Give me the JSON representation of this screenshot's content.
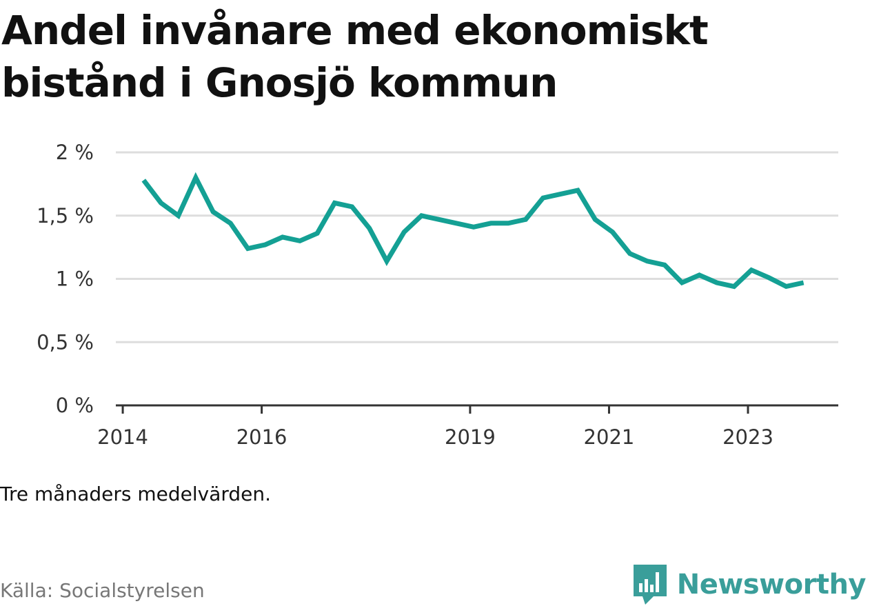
{
  "title": "Andel invånare med ekonomiskt bistånd i Gnosjö kommun",
  "note": "Tre månaders medelvärden.",
  "source": "Källa: Socialstyrelsen",
  "brand": {
    "name": "Newsworthy",
    "icon": "newsworthy-logo-icon",
    "color": "#3a9e9a"
  },
  "colors": {
    "line": "#14a094",
    "grid": "#dddddd",
    "axis": "#333333"
  },
  "chart_data": {
    "type": "line",
    "title": "Andel invånare med ekonomiskt bistånd i Gnosjö kommun",
    "xlabel": "",
    "ylabel": "",
    "ylim": [
      0,
      2
    ],
    "xlim": [
      2013.9,
      2024.3
    ],
    "grid": true,
    "yticks": [
      {
        "value": 0,
        "label": "0 %"
      },
      {
        "value": 0.5,
        "label": "0,5 %"
      },
      {
        "value": 1,
        "label": "1 %"
      },
      {
        "value": 1.5,
        "label": "1,5 %"
      },
      {
        "value": 2,
        "label": "2 %"
      }
    ],
    "xticks": [
      {
        "value": 2014,
        "label": "2014"
      },
      {
        "value": 2016,
        "label": "2016"
      },
      {
        "value": 2019,
        "label": "2019"
      },
      {
        "value": 2021,
        "label": "2021"
      },
      {
        "value": 2023,
        "label": "2023"
      }
    ],
    "series": [
      {
        "name": "Andel invånare med ekonomiskt bistånd",
        "x": [
          2014.3,
          2014.55,
          2014.8,
          2015.05,
          2015.3,
          2015.55,
          2015.8,
          2016.05,
          2016.3,
          2016.55,
          2016.8,
          2017.05,
          2017.3,
          2017.55,
          2017.8,
          2018.05,
          2018.3,
          2018.55,
          2018.8,
          2019.05,
          2019.3,
          2019.55,
          2019.8,
          2020.05,
          2020.3,
          2020.55,
          2020.8,
          2021.05,
          2021.3,
          2021.55,
          2021.8,
          2022.05,
          2022.3,
          2022.55,
          2022.8,
          2023.05,
          2023.3,
          2023.55,
          2023.8
        ],
        "values": [
          1.78,
          1.6,
          1.5,
          1.8,
          1.53,
          1.44,
          1.24,
          1.27,
          1.33,
          1.3,
          1.36,
          1.6,
          1.57,
          1.4,
          1.14,
          1.37,
          1.5,
          1.47,
          1.44,
          1.41,
          1.44,
          1.44,
          1.47,
          1.64,
          1.67,
          1.7,
          1.47,
          1.37,
          1.2,
          1.14,
          1.11,
          0.97,
          1.03,
          0.97,
          0.94,
          1.07,
          1.01,
          0.94,
          0.97
        ]
      }
    ]
  }
}
